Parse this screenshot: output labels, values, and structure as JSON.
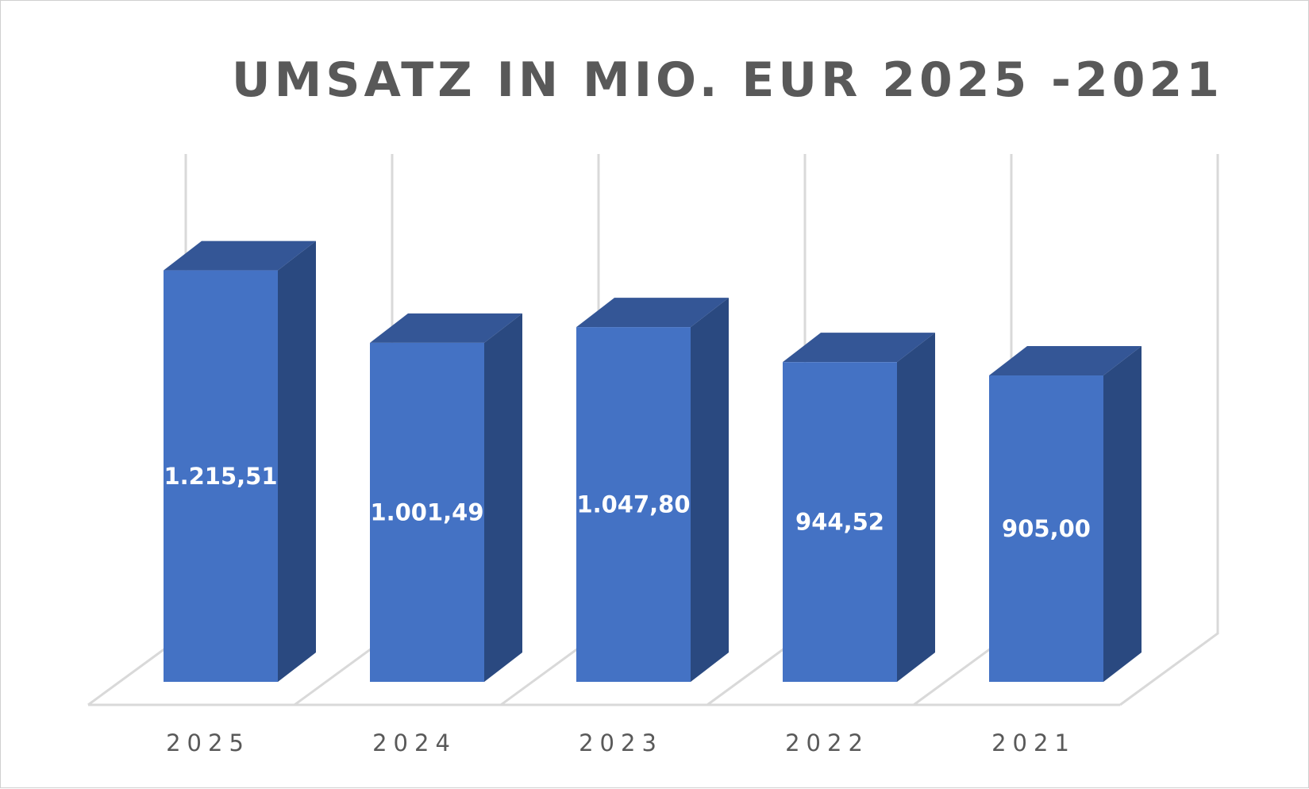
{
  "chart_data": {
    "type": "bar",
    "title": "UMSATZ IN MIO. EUR 2025 -2021",
    "categories": [
      "2025",
      "2024",
      "2023",
      "2022",
      "2021"
    ],
    "values": [
      1215.51,
      1001.49,
      1047.8,
      944.52,
      905.0
    ],
    "value_labels": [
      "1.215,51",
      "1.001,49",
      "1.047,80",
      "944,52",
      "905,00"
    ],
    "xlabel": "",
    "ylabel": "",
    "ylim": [
      0,
      1400
    ],
    "grid": true,
    "legend": "none",
    "three_d": true,
    "colors": {
      "bar_front": "#4472C4",
      "bar_side": "#2A4980",
      "bar_top": "#345696",
      "gridline": "#D9D9D9",
      "text": "#595959",
      "value_text": "#FFFFFF"
    }
  }
}
